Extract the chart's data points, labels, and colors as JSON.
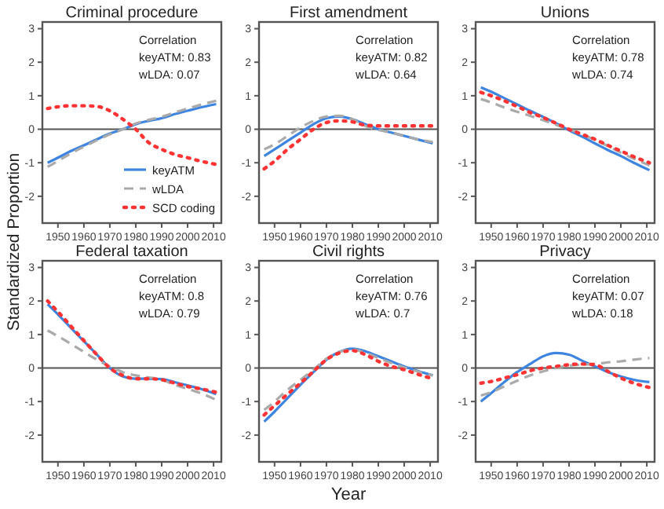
{
  "chart_data": [
    {
      "type": "line",
      "title": "Criminal procedure",
      "ylabel": "Standardized Proportion",
      "x": [
        1946,
        1950,
        1955,
        1960,
        1965,
        1970,
        1975,
        1980,
        1985,
        1990,
        1995,
        2000,
        2005,
        2011
      ],
      "xlim": [
        1944,
        2013
      ],
      "ylim": [
        -2.8,
        3.2
      ],
      "xticks": [
        1950,
        1960,
        1970,
        1980,
        1990,
        2000,
        2010
      ],
      "yticks": [
        -2,
        -1,
        0,
        1,
        2,
        3
      ],
      "grid": false,
      "legend": "bottom right",
      "ref_lines": [
        {
          "axis": "y",
          "value": 0,
          "color": "#555555"
        }
      ],
      "annotations": [
        "Correlation",
        "keyATM: 0.83",
        "wLDA: 0.07"
      ],
      "series": [
        {
          "name": "keyATM",
          "color": "#3d85e0",
          "line_style": "solid",
          "values": [
            -1.0,
            -0.85,
            -0.65,
            -0.48,
            -0.3,
            -0.13,
            0.0,
            0.15,
            0.25,
            0.33,
            0.45,
            0.55,
            0.65,
            0.75
          ]
        },
        {
          "name": "wLDA",
          "color": "#aaaaaa",
          "line_style": "dashed",
          "values": [
            -1.12,
            -0.95,
            -0.72,
            -0.52,
            -0.33,
            -0.15,
            0.0,
            0.17,
            0.28,
            0.37,
            0.5,
            0.62,
            0.73,
            0.85
          ]
        },
        {
          "name": "SCD coding",
          "color": "#ff3333",
          "line_style": "dotted",
          "values": [
            0.62,
            0.67,
            0.7,
            0.7,
            0.68,
            0.55,
            0.3,
            0.0,
            -0.4,
            -0.6,
            -0.75,
            -0.85,
            -0.95,
            -1.05
          ]
        }
      ]
    },
    {
      "type": "line",
      "title": "First amendment",
      "x": [
        1946,
        1950,
        1955,
        1960,
        1965,
        1970,
        1975,
        1980,
        1985,
        1990,
        1995,
        2000,
        2005,
        2011
      ],
      "xlim": [
        1944,
        2013
      ],
      "ylim": [
        -2.8,
        3.2
      ],
      "xticks": [
        1950,
        1960,
        1970,
        1980,
        1990,
        2000,
        2010
      ],
      "yticks": [
        -2,
        -1,
        0,
        1,
        2,
        3
      ],
      "grid": false,
      "ref_lines": [
        {
          "axis": "y",
          "value": 0,
          "color": "#555555"
        }
      ],
      "annotations": [
        "Correlation",
        "keyATM: 0.82",
        "wLDA: 0.64"
      ],
      "series": [
        {
          "color": "#3d85e0",
          "line_style": "solid",
          "values": [
            -0.8,
            -0.6,
            -0.35,
            -0.1,
            0.15,
            0.33,
            0.38,
            0.3,
            0.15,
            0.0,
            -0.1,
            -0.2,
            -0.3,
            -0.42
          ]
        },
        {
          "color": "#aaaaaa",
          "line_style": "dashed",
          "values": [
            -0.6,
            -0.45,
            -0.2,
            0.05,
            0.25,
            0.38,
            0.4,
            0.3,
            0.1,
            -0.02,
            -0.1,
            -0.2,
            -0.3,
            -0.38
          ]
        },
        {
          "color": "#ff3333",
          "line_style": "dotted",
          "values": [
            -1.18,
            -0.95,
            -0.6,
            -0.3,
            0.0,
            0.2,
            0.25,
            0.22,
            0.12,
            0.1,
            0.1,
            0.1,
            0.1,
            0.1
          ]
        }
      ]
    },
    {
      "type": "line",
      "title": "Unions",
      "x": [
        1946,
        1950,
        1955,
        1960,
        1965,
        1970,
        1975,
        1980,
        1985,
        1990,
        1995,
        2000,
        2005,
        2011
      ],
      "xlim": [
        1944,
        2013
      ],
      "ylim": [
        -2.8,
        3.2
      ],
      "xticks": [
        1950,
        1960,
        1970,
        1980,
        1990,
        2000,
        2010
      ],
      "yticks": [
        -2,
        -1,
        0,
        1,
        2,
        3
      ],
      "grid": false,
      "ref_lines": [
        {
          "axis": "y",
          "value": 0,
          "color": "#555555"
        }
      ],
      "annotations": [
        "Correlation",
        "keyATM: 0.78",
        "wLDA: 0.74"
      ],
      "series": [
        {
          "color": "#3d85e0",
          "line_style": "solid",
          "values": [
            1.25,
            1.12,
            0.93,
            0.74,
            0.55,
            0.37,
            0.18,
            -0.03,
            -0.22,
            -0.42,
            -0.62,
            -0.8,
            -1.0,
            -1.22
          ]
        },
        {
          "color": "#aaaaaa",
          "line_style": "dashed",
          "values": [
            0.9,
            0.8,
            0.65,
            0.52,
            0.4,
            0.27,
            0.13,
            0.0,
            -0.15,
            -0.32,
            -0.5,
            -0.7,
            -0.88,
            -1.08
          ]
        },
        {
          "color": "#ff3333",
          "line_style": "dotted",
          "values": [
            1.1,
            1.0,
            0.85,
            0.68,
            0.5,
            0.35,
            0.18,
            0.0,
            -0.15,
            -0.3,
            -0.48,
            -0.65,
            -0.82,
            -1.0
          ]
        }
      ]
    },
    {
      "type": "line",
      "title": "Federal taxation",
      "x": [
        1946,
        1950,
        1955,
        1960,
        1965,
        1970,
        1975,
        1980,
        1985,
        1990,
        1995,
        2000,
        2005,
        2011
      ],
      "xlim": [
        1944,
        2013
      ],
      "ylim": [
        -2.8,
        3.2
      ],
      "xticks": [
        1950,
        1960,
        1970,
        1980,
        1990,
        2000,
        2010
      ],
      "yticks": [
        -2,
        -1,
        0,
        1,
        2,
        3
      ],
      "grid": false,
      "ref_lines": [
        {
          "axis": "y",
          "value": 0,
          "color": "#555555"
        }
      ],
      "annotations": [
        "Correlation",
        "keyATM: 0.8",
        "wLDA: 0.79"
      ],
      "series": [
        {
          "color": "#3d85e0",
          "line_style": "solid",
          "values": [
            1.9,
            1.6,
            1.2,
            0.8,
            0.4,
            0.0,
            -0.25,
            -0.32,
            -0.32,
            -0.33,
            -0.42,
            -0.52,
            -0.62,
            -0.78
          ]
        },
        {
          "color": "#aaaaaa",
          "line_style": "dashed",
          "values": [
            1.12,
            0.95,
            0.72,
            0.48,
            0.25,
            0.05,
            -0.12,
            -0.22,
            -0.28,
            -0.35,
            -0.5,
            -0.62,
            -0.75,
            -0.95
          ]
        },
        {
          "color": "#ff3333",
          "line_style": "dotted",
          "values": [
            2.0,
            1.68,
            1.25,
            0.82,
            0.4,
            0.0,
            -0.22,
            -0.32,
            -0.32,
            -0.35,
            -0.45,
            -0.55,
            -0.62,
            -0.72
          ]
        }
      ]
    },
    {
      "type": "line",
      "title": "Civil rights",
      "xlabel": "Year",
      "x": [
        1946,
        1950,
        1955,
        1960,
        1965,
        1970,
        1975,
        1980,
        1985,
        1990,
        1995,
        2000,
        2005,
        2011
      ],
      "xlim": [
        1944,
        2013
      ],
      "ylim": [
        -2.8,
        3.2
      ],
      "xticks": [
        1950,
        1960,
        1970,
        1980,
        1990,
        2000,
        2010
      ],
      "yticks": [
        -2,
        -1,
        0,
        1,
        2,
        3
      ],
      "grid": false,
      "ref_lines": [
        {
          "axis": "y",
          "value": 0,
          "color": "#555555"
        }
      ],
      "annotations": [
        "Correlation",
        "keyATM: 0.76",
        "wLDA: 0.7"
      ],
      "series": [
        {
          "color": "#3d85e0",
          "line_style": "solid",
          "values": [
            -1.6,
            -1.3,
            -0.9,
            -0.5,
            -0.12,
            0.25,
            0.48,
            0.58,
            0.5,
            0.35,
            0.2,
            0.05,
            -0.08,
            -0.22
          ]
        },
        {
          "color": "#aaaaaa",
          "line_style": "dashed",
          "values": [
            -1.25,
            -1.0,
            -0.65,
            -0.35,
            -0.05,
            0.28,
            0.48,
            0.55,
            0.45,
            0.3,
            0.15,
            0.02,
            -0.1,
            -0.22
          ]
        },
        {
          "color": "#ff3333",
          "line_style": "dotted",
          "values": [
            -1.4,
            -1.12,
            -0.78,
            -0.45,
            -0.1,
            0.25,
            0.45,
            0.52,
            0.4,
            0.2,
            0.05,
            -0.05,
            -0.18,
            -0.32
          ]
        }
      ]
    },
    {
      "type": "line",
      "title": "Privacy",
      "x": [
        1946,
        1950,
        1955,
        1960,
        1965,
        1970,
        1975,
        1980,
        1985,
        1990,
        1995,
        2000,
        2005,
        2011
      ],
      "xlim": [
        1944,
        2013
      ],
      "ylim": [
        -2.8,
        3.2
      ],
      "xticks": [
        1950,
        1960,
        1970,
        1980,
        1990,
        2000,
        2010
      ],
      "yticks": [
        -2,
        -1,
        0,
        1,
        2,
        3
      ],
      "grid": false,
      "ref_lines": [
        {
          "axis": "y",
          "value": 0,
          "color": "#555555"
        }
      ],
      "annotations": [
        "Correlation",
        "keyATM: 0.07",
        "wLDA: 0.18"
      ],
      "series": [
        {
          "color": "#3d85e0",
          "line_style": "solid",
          "values": [
            -1.0,
            -0.75,
            -0.42,
            -0.12,
            0.12,
            0.35,
            0.45,
            0.4,
            0.22,
            0.05,
            -0.12,
            -0.25,
            -0.35,
            -0.42
          ]
        },
        {
          "color": "#aaaaaa",
          "line_style": "dashed",
          "values": [
            -0.82,
            -0.72,
            -0.55,
            -0.38,
            -0.22,
            -0.1,
            0.0,
            0.07,
            0.1,
            0.12,
            0.17,
            0.2,
            0.25,
            0.3
          ]
        },
        {
          "color": "#ff3333",
          "line_style": "dotted",
          "values": [
            -0.45,
            -0.4,
            -0.3,
            -0.2,
            -0.08,
            0.0,
            0.05,
            0.1,
            0.12,
            0.1,
            -0.1,
            -0.3,
            -0.45,
            -0.58
          ]
        }
      ]
    }
  ]
}
